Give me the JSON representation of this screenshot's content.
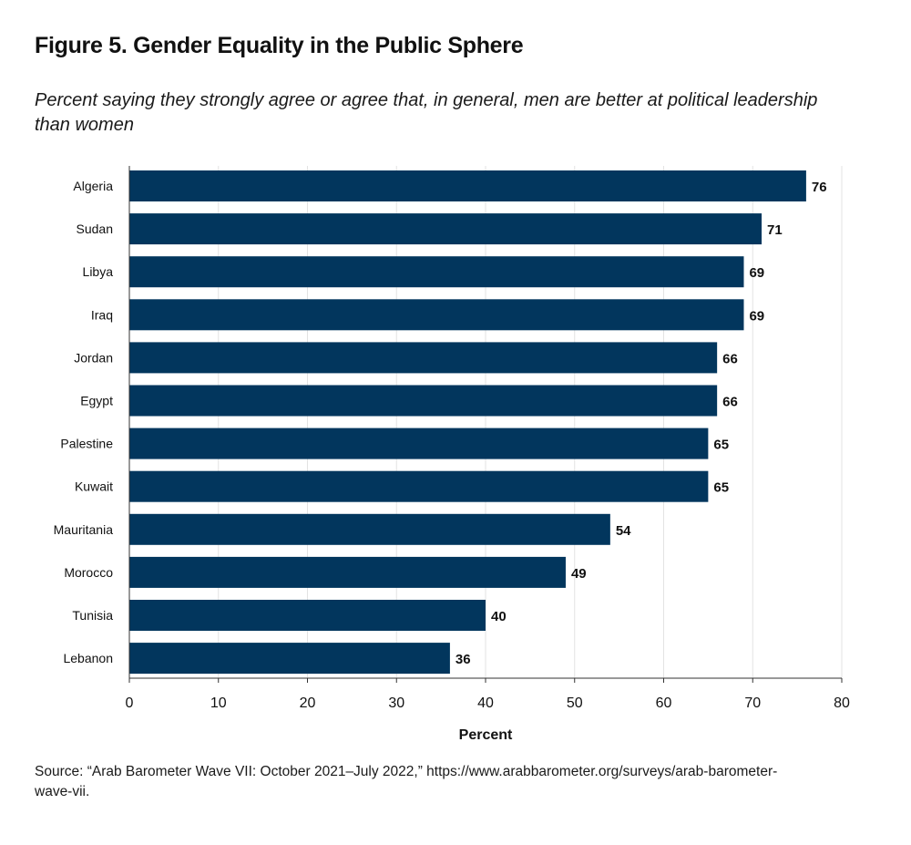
{
  "figure": {
    "title": "Figure 5. Gender Equality in the Public Sphere",
    "subtitle": "Percent saying they strongly agree or agree that, in general, men are better at political leadership than women",
    "source": "Source: “Arab Barometer Wave VII: October 2021–July 2022,” https://www.arabbarometer.org/surveys/arab-barometer-wave-vii."
  },
  "colors": {
    "bar": "#02365d",
    "grid": "#e3e3e3",
    "axis": "#333333"
  },
  "chart_data": {
    "type": "bar",
    "orientation": "horizontal",
    "categories": [
      "Algeria",
      "Sudan",
      "Libya",
      "Iraq",
      "Jordan",
      "Egypt",
      "Palestine",
      "Kuwait",
      "Mauritania",
      "Morocco",
      "Tunisia",
      "Lebanon"
    ],
    "values": [
      76,
      71,
      69,
      69,
      66,
      66,
      65,
      65,
      54,
      49,
      40,
      36
    ],
    "xlabel": "Percent",
    "ylabel": "",
    "xlim": [
      0,
      80
    ],
    "xticks": [
      0,
      10,
      20,
      30,
      40,
      50,
      60,
      70,
      80
    ],
    "grid": "vertical",
    "data_labels": true
  }
}
